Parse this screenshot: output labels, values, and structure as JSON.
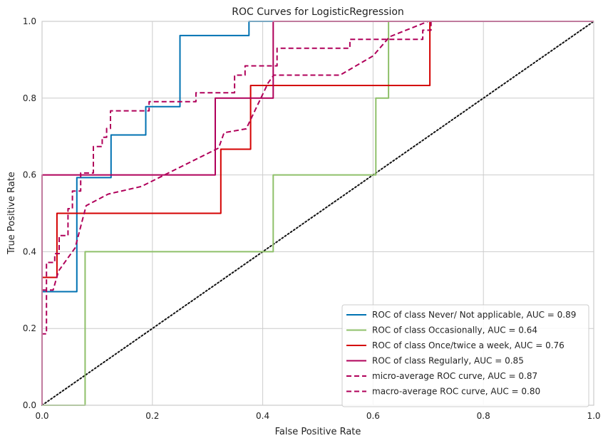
{
  "chart_data": {
    "type": "line",
    "title": "ROC Curves for LogisticRegression",
    "xlabel": "False Positive Rate",
    "ylabel": "True Positive Rate",
    "xlim": [
      0,
      1
    ],
    "ylim": [
      0,
      1
    ],
    "xticks": [
      "0.0",
      "0.2",
      "0.4",
      "0.6",
      "0.8",
      "1.0"
    ],
    "yticks": [
      "0.0",
      "0.2",
      "0.4",
      "0.6",
      "0.8",
      "1.0"
    ],
    "grid": true,
    "legend_position": "lower-right",
    "series": [
      {
        "name": "ROC of class Never/ Not applicable, AUC = 0.89",
        "color": "#0072b2",
        "dash": "solid",
        "points": [
          [
            0,
            0
          ],
          [
            0,
            0.296
          ],
          [
            0.063,
            0.296
          ],
          [
            0.063,
            0.593
          ],
          [
            0.125,
            0.593
          ],
          [
            0.125,
            0.704
          ],
          [
            0.188,
            0.704
          ],
          [
            0.188,
            0.778
          ],
          [
            0.25,
            0.778
          ],
          [
            0.25,
            0.963
          ],
          [
            0.375,
            0.963
          ],
          [
            0.375,
            1.0
          ],
          [
            1.0,
            1.0
          ]
        ]
      },
      {
        "name": "ROC of class Occasionally, AUC = 0.64",
        "color": "#8fc06a",
        "dash": "solid",
        "points": [
          [
            0,
            0
          ],
          [
            0.078,
            0
          ],
          [
            0.078,
            0.4
          ],
          [
            0.419,
            0.4
          ],
          [
            0.419,
            0.6
          ],
          [
            0.605,
            0.6
          ],
          [
            0.605,
            0.8
          ],
          [
            0.628,
            0.8
          ],
          [
            0.628,
            1.0
          ],
          [
            1.0,
            1.0
          ]
        ]
      },
      {
        "name": "ROC of class Once/twice a week, AUC = 0.76",
        "color": "#d40000",
        "dash": "solid",
        "points": [
          [
            0,
            0
          ],
          [
            0,
            0.333
          ],
          [
            0.027,
            0.333
          ],
          [
            0.027,
            0.5
          ],
          [
            0.324,
            0.5
          ],
          [
            0.324,
            0.667
          ],
          [
            0.378,
            0.667
          ],
          [
            0.378,
            0.833
          ],
          [
            0.703,
            0.833
          ],
          [
            0.703,
            1.0
          ],
          [
            1.0,
            1.0
          ]
        ]
      },
      {
        "name": "ROC of class Regularly, AUC = 0.85",
        "color": "#b0005a",
        "dash": "solid",
        "points": [
          [
            0,
            0
          ],
          [
            0,
            0.6
          ],
          [
            0.314,
            0.6
          ],
          [
            0.314,
            0.8
          ],
          [
            0.419,
            0.8
          ],
          [
            0.419,
            1.0
          ],
          [
            1.0,
            1.0
          ]
        ]
      },
      {
        "name": "micro-average ROC curve, AUC = 0.87",
        "color": "#b0005a",
        "dash": "dashed",
        "points": [
          [
            0,
            0
          ],
          [
            0,
            0.186
          ],
          [
            0.008,
            0.186
          ],
          [
            0.008,
            0.372
          ],
          [
            0.023,
            0.372
          ],
          [
            0.023,
            0.395
          ],
          [
            0.031,
            0.395
          ],
          [
            0.031,
            0.442
          ],
          [
            0.047,
            0.442
          ],
          [
            0.047,
            0.512
          ],
          [
            0.055,
            0.512
          ],
          [
            0.055,
            0.558
          ],
          [
            0.07,
            0.558
          ],
          [
            0.07,
            0.605
          ],
          [
            0.078,
            0.605
          ],
          [
            0.093,
            0.605
          ],
          [
            0.093,
            0.674
          ],
          [
            0.109,
            0.674
          ],
          [
            0.109,
            0.698
          ],
          [
            0.117,
            0.698
          ],
          [
            0.117,
            0.721
          ],
          [
            0.124,
            0.721
          ],
          [
            0.124,
            0.767
          ],
          [
            0.194,
            0.767
          ],
          [
            0.194,
            0.791
          ],
          [
            0.279,
            0.791
          ],
          [
            0.279,
            0.814
          ],
          [
            0.349,
            0.814
          ],
          [
            0.349,
            0.86
          ],
          [
            0.368,
            0.86
          ],
          [
            0.368,
            0.884
          ],
          [
            0.426,
            0.884
          ],
          [
            0.426,
            0.93
          ],
          [
            0.558,
            0.93
          ],
          [
            0.558,
            0.953
          ],
          [
            0.69,
            0.953
          ],
          [
            0.69,
            0.977
          ],
          [
            0.705,
            0.977
          ],
          [
            0.705,
            1.0
          ],
          [
            1.0,
            1.0
          ]
        ]
      },
      {
        "name": "macro-average ROC curve, AUC = 0.80",
        "color": "#b0005a",
        "dash": "dashed",
        "points": [
          [
            0,
            0.3
          ],
          [
            0.02,
            0.3
          ],
          [
            0.03,
            0.35
          ],
          [
            0.06,
            0.41
          ],
          [
            0.08,
            0.52
          ],
          [
            0.12,
            0.55
          ],
          [
            0.18,
            0.57
          ],
          [
            0.25,
            0.62
          ],
          [
            0.32,
            0.67
          ],
          [
            0.33,
            0.71
          ],
          [
            0.37,
            0.72
          ],
          [
            0.41,
            0.84
          ],
          [
            0.42,
            0.86
          ],
          [
            0.54,
            0.86
          ],
          [
            0.6,
            0.91
          ],
          [
            0.63,
            0.96
          ],
          [
            0.7,
            1.0
          ],
          [
            1.0,
            1.0
          ]
        ]
      },
      {
        "name": "",
        "color": "#111111",
        "dash": "dotted",
        "points": [
          [
            0,
            0
          ],
          [
            1,
            1
          ]
        ]
      }
    ]
  }
}
